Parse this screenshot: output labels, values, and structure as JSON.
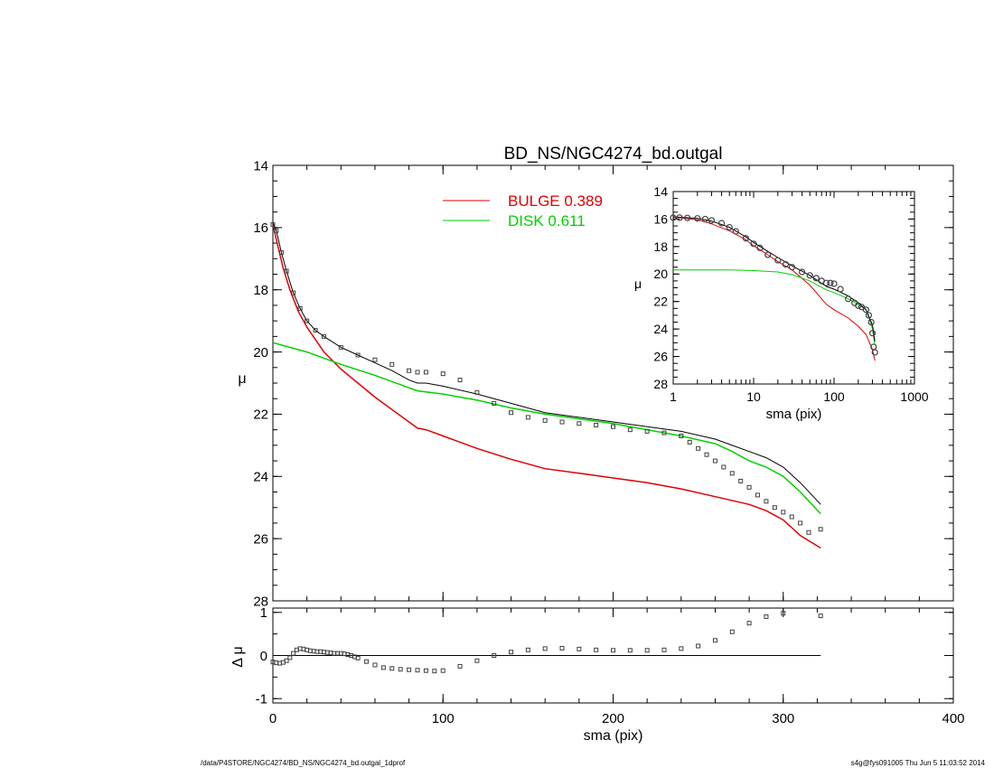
{
  "chart_data": [
    {
      "type": "line",
      "title": "BD_NS/NGC4274_bd.outgal",
      "xlabel": "",
      "ylabel": "μ",
      "xlim": [
        0,
        400
      ],
      "ylim": [
        28,
        14
      ],
      "y_inverted": true,
      "x_ticks": [
        0,
        100,
        200,
        300,
        400
      ],
      "y_ticks": [
        14,
        16,
        18,
        20,
        22,
        24,
        26,
        28
      ],
      "legend": [
        {
          "label": "BULGE",
          "value": "0.389",
          "color": "#e00000"
        },
        {
          "label": "DISK",
          "value": "0.611",
          "color": "#00d000"
        }
      ],
      "legend_placement": "top-center",
      "series": [
        {
          "name": "BULGE",
          "color": "#e00000",
          "x": [
            0,
            3,
            6,
            10,
            15,
            20,
            25,
            30,
            40,
            50,
            60,
            70,
            80,
            85,
            90,
            100,
            120,
            140,
            160,
            180,
            200,
            220,
            240,
            260,
            280,
            290,
            300,
            310,
            322
          ],
          "y": [
            15.9,
            16.6,
            17.3,
            18.0,
            18.7,
            19.2,
            19.6,
            20.0,
            20.55,
            21.0,
            21.45,
            21.85,
            22.25,
            22.45,
            22.5,
            22.7,
            23.1,
            23.45,
            23.75,
            23.9,
            24.05,
            24.2,
            24.4,
            24.65,
            24.9,
            25.1,
            25.4,
            25.9,
            26.3
          ]
        },
        {
          "name": "DISK",
          "color": "#00d000",
          "x": [
            0,
            20,
            40,
            60,
            80,
            85,
            100,
            120,
            140,
            160,
            180,
            200,
            220,
            240,
            260,
            270,
            280,
            290,
            300,
            310,
            322
          ],
          "y": [
            19.7,
            20.0,
            20.4,
            20.75,
            21.15,
            21.25,
            21.35,
            21.55,
            21.8,
            22.0,
            22.15,
            22.3,
            22.5,
            22.7,
            22.95,
            23.2,
            23.5,
            23.7,
            24.0,
            24.5,
            25.2
          ]
        },
        {
          "name": "",
          "color": "#000000",
          "x": [
            0,
            2,
            5,
            8,
            12,
            16,
            20,
            25,
            30,
            40,
            50,
            60,
            70,
            80,
            85,
            90,
            100,
            120,
            140,
            160,
            180,
            200,
            220,
            240,
            260,
            270,
            280,
            290,
            300,
            310,
            322
          ],
          "y": [
            15.85,
            16.1,
            16.8,
            17.4,
            18.1,
            18.6,
            19.0,
            19.3,
            19.5,
            19.85,
            20.1,
            20.35,
            20.6,
            20.9,
            21.0,
            21.0,
            21.1,
            21.35,
            21.65,
            21.95,
            22.1,
            22.25,
            22.4,
            22.55,
            22.8,
            23.0,
            23.2,
            23.4,
            23.7,
            24.2,
            24.9
          ]
        },
        {
          "name": "",
          "color": "#404040",
          "marker": "square",
          "x": [
            0,
            2,
            5,
            8,
            12,
            16,
            20,
            25,
            30,
            40,
            50,
            60,
            70,
            80,
            85,
            90,
            100,
            110,
            120,
            130,
            140,
            150,
            160,
            170,
            180,
            190,
            200,
            210,
            220,
            230,
            240,
            245,
            250,
            255,
            260,
            265,
            270,
            275,
            280,
            285,
            290,
            295,
            300,
            305,
            310,
            315,
            322
          ],
          "y": [
            15.9,
            16.1,
            16.8,
            17.4,
            18.1,
            18.6,
            19.0,
            19.3,
            19.5,
            19.85,
            20.1,
            20.25,
            20.4,
            20.6,
            20.65,
            20.65,
            20.7,
            20.9,
            21.3,
            21.65,
            21.95,
            22.1,
            22.2,
            22.25,
            22.3,
            22.35,
            22.4,
            22.5,
            22.55,
            22.6,
            22.7,
            22.9,
            23.1,
            23.3,
            23.5,
            23.7,
            23.9,
            24.15,
            24.35,
            24.6,
            24.8,
            25.0,
            25.15,
            25.3,
            25.5,
            25.8,
            25.7
          ]
        }
      ]
    },
    {
      "type": "scatter",
      "xlabel": "sma (pix)",
      "ylabel": "Δ μ",
      "xlim": [
        0,
        400
      ],
      "ylim": [
        -1.1,
        1.1
      ],
      "x_ticks": [
        0,
        100,
        200,
        300,
        400
      ],
      "y_ticks": [
        -1,
        0,
        1
      ],
      "reference_line": 0,
      "series": [
        {
          "name": "",
          "color": "#404040",
          "marker": "square",
          "x": [
            0,
            2,
            4,
            6,
            8,
            10,
            12,
            14,
            16,
            18,
            20,
            22,
            24,
            26,
            28,
            30,
            32,
            34,
            36,
            38,
            40,
            42,
            44,
            46,
            48,
            50,
            55,
            60,
            65,
            70,
            75,
            80,
            85,
            90,
            95,
            100,
            110,
            120,
            130,
            140,
            150,
            160,
            170,
            180,
            190,
            200,
            210,
            220,
            230,
            240,
            250,
            260,
            270,
            280,
            290,
            300,
            322
          ],
          "y": [
            -0.15,
            -0.17,
            -0.18,
            -0.16,
            -0.12,
            -0.05,
            0.05,
            0.13,
            0.16,
            0.15,
            0.13,
            0.11,
            0.1,
            0.09,
            0.09,
            0.08,
            0.07,
            0.06,
            0.05,
            0.05,
            0.05,
            0.04,
            0.02,
            0.0,
            -0.03,
            -0.06,
            -0.14,
            -0.22,
            -0.28,
            -0.3,
            -0.32,
            -0.33,
            -0.34,
            -0.35,
            -0.36,
            -0.35,
            -0.25,
            -0.12,
            0.0,
            0.08,
            0.13,
            0.16,
            0.17,
            0.15,
            0.13,
            0.12,
            0.12,
            0.12,
            0.13,
            0.16,
            0.22,
            0.35,
            0.55,
            0.75,
            0.9,
            0.98,
            0.92
          ]
        }
      ]
    },
    {
      "type": "line",
      "title": "",
      "xlabel": "sma (pix)",
      "ylabel": "μ",
      "x_scale": "log",
      "xlim": [
        1,
        1000
      ],
      "ylim": [
        28,
        14
      ],
      "y_inverted": true,
      "x_ticks": [
        1,
        10,
        100,
        1000
      ],
      "y_ticks": [
        14,
        16,
        18,
        20,
        22,
        24,
        26,
        28
      ],
      "legend_placement": "none",
      "series": [
        {
          "name": "",
          "color": "#e00000",
          "x": [
            1,
            2,
            3,
            5,
            8,
            10,
            15,
            20,
            30,
            50,
            80,
            100,
            150,
            200,
            250,
            300,
            322
          ],
          "y": [
            15.85,
            16.05,
            16.35,
            16.85,
            17.5,
            17.95,
            18.6,
            19.1,
            19.7,
            20.8,
            22.2,
            22.6,
            23.2,
            23.8,
            24.4,
            25.5,
            26.3
          ]
        },
        {
          "name": "",
          "color": "#00d000",
          "x": [
            1,
            5,
            10,
            20,
            30,
            50,
            80,
            100,
            150,
            200,
            250,
            280,
            300,
            322
          ],
          "y": [
            19.7,
            19.7,
            19.75,
            19.85,
            20.05,
            20.5,
            21.15,
            21.35,
            21.8,
            22.2,
            22.6,
            23.4,
            24.0,
            25.2
          ]
        },
        {
          "name": "",
          "color": "#000000",
          "x": [
            1,
            2,
            3,
            5,
            8,
            10,
            15,
            20,
            30,
            50,
            80,
            100,
            150,
            200,
            250,
            280,
            300,
            322
          ],
          "y": [
            15.85,
            15.95,
            16.15,
            16.6,
            17.3,
            17.7,
            18.35,
            18.8,
            19.4,
            20.1,
            20.9,
            21.1,
            21.6,
            22.1,
            22.6,
            23.3,
            23.7,
            24.9
          ]
        },
        {
          "name": "",
          "color": "#404040",
          "marker": "circle",
          "x": [
            1,
            1.2,
            1.5,
            2,
            2.5,
            3,
            4,
            5,
            6,
            8,
            10,
            12,
            15,
            20,
            25,
            30,
            40,
            50,
            60,
            70,
            80,
            90,
            100,
            120,
            150,
            180,
            200,
            220,
            250,
            270,
            290,
            300,
            310,
            322
          ],
          "y": [
            15.9,
            15.9,
            15.92,
            15.95,
            16.0,
            16.1,
            16.3,
            16.6,
            16.9,
            17.4,
            17.8,
            18.1,
            18.6,
            19.0,
            19.3,
            19.5,
            19.85,
            20.1,
            20.3,
            20.5,
            20.65,
            20.65,
            20.7,
            21.1,
            21.8,
            22.1,
            22.3,
            22.4,
            22.6,
            23.0,
            23.5,
            24.3,
            25.3,
            25.7
          ]
        }
      ]
    }
  ],
  "footer": {
    "left": "/data/P4STORE/NGC4274/BD_NS/NGC4274_bd.outgal_1dprof",
    "right": "s4g@fys091005  Thu Jun  5 11:03:52 2014"
  }
}
